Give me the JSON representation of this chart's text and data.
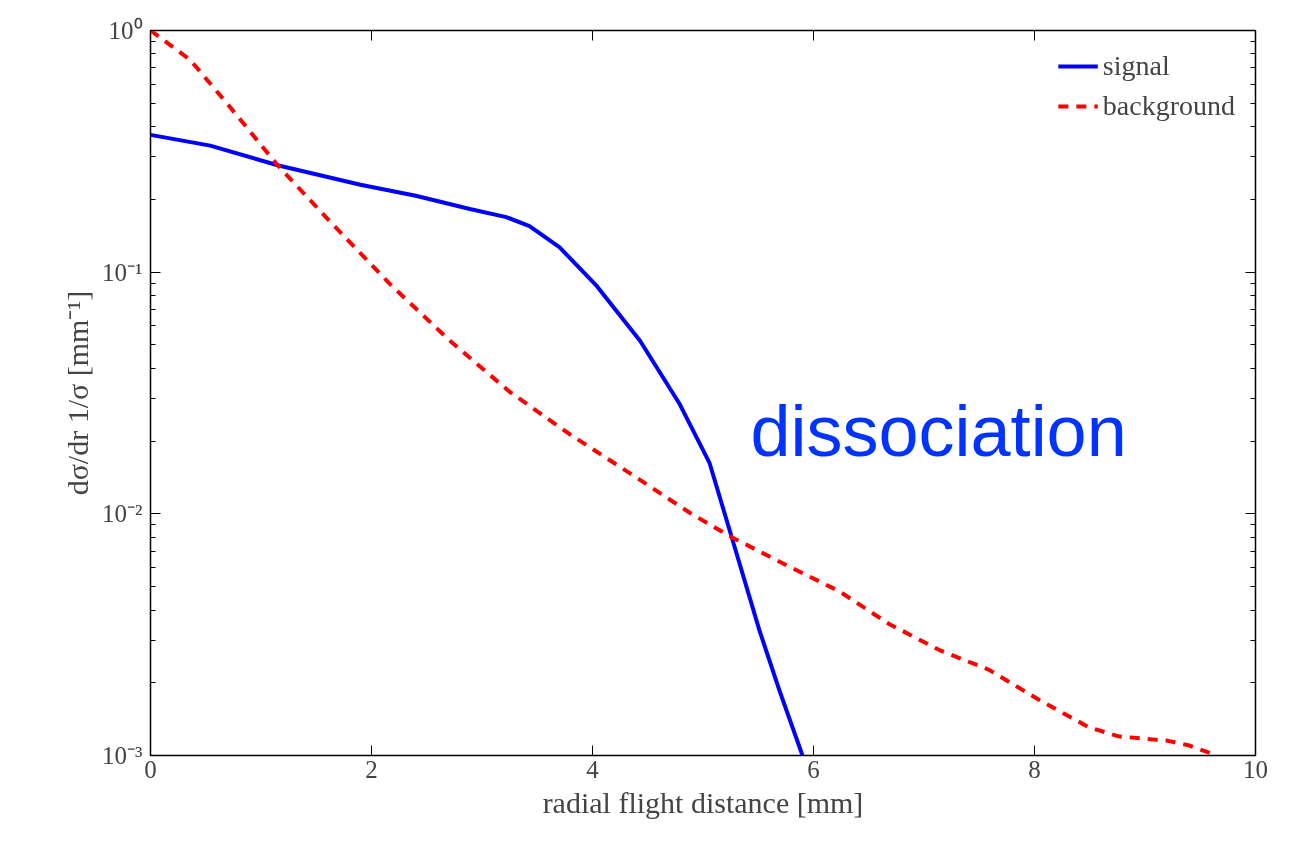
{
  "chart_data": {
    "type": "line",
    "xlabel": "radial flight distance [mm]",
    "ylabel": "dσ/dr 1/σ [mm⁻¹]",
    "log": "y",
    "xlim": [
      0,
      10
    ],
    "ylim": [
      0.001,
      1
    ],
    "xticks": [
      0,
      2,
      4,
      6,
      8,
      10
    ],
    "yticks": [
      {
        "value": 0.001,
        "label": "10⁻³"
      },
      {
        "value": 0.01,
        "label": "10⁻²"
      },
      {
        "value": 0.1,
        "label": "10⁻¹"
      },
      {
        "value": 1,
        "label": "10⁰"
      }
    ],
    "grid": false,
    "legend": "top right",
    "marker": "none",
    "annotations": [
      "dissociation"
    ],
    "series": [
      {
        "name": "signal",
        "color": "#0000ff",
        "line_style": "solid",
        "x": [
          0,
          0.54,
          1.15,
          1.9,
          2.4,
          2.9,
          3.22,
          3.43,
          3.7,
          4.04,
          4.43,
          4.79,
          5.06,
          5.26,
          5.51,
          5.69,
          5.9
        ],
        "values": [
          0.37,
          0.334,
          0.277,
          0.23,
          0.207,
          0.182,
          0.169,
          0.155,
          0.127,
          0.0875,
          0.052,
          0.0284,
          0.0162,
          0.008,
          0.0033,
          0.00187,
          0.001
        ]
      },
      {
        "name": "background",
        "color": "#ff0000",
        "line_style": "dashed",
        "x": [
          0,
          0.36,
          0.72,
          1.15,
          1.63,
          2.17,
          2.71,
          3.25,
          3.79,
          4.34,
          4.88,
          5.26,
          5.78,
          6.23,
          6.68,
          7.14,
          7.59,
          8.04,
          8.49,
          8.76,
          9.21,
          9.4,
          9.65
        ],
        "values": [
          1.0,
          0.755,
          0.482,
          0.277,
          0.161,
          0.089,
          0.052,
          0.032,
          0.0214,
          0.0147,
          0.0101,
          0.008,
          0.00605,
          0.00479,
          0.00351,
          0.00273,
          0.00226,
          0.0017,
          0.00131,
          0.0012,
          0.00115,
          0.0011,
          0.001
        ]
      }
    ]
  }
}
